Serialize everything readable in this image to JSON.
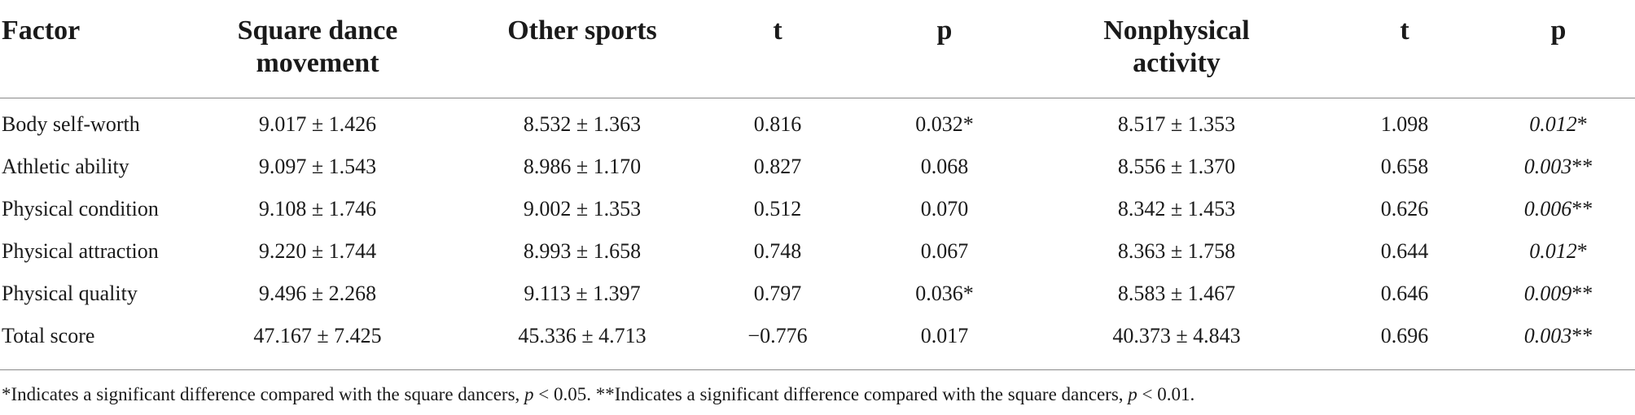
{
  "table": {
    "headers": [
      {
        "line1": "Factor",
        "line2": ""
      },
      {
        "line1": "Square dance",
        "line2": "movement"
      },
      {
        "line1": "Other sports",
        "line2": ""
      },
      {
        "line1": "t",
        "line2": ""
      },
      {
        "line1": "p",
        "line2": ""
      },
      {
        "line1": "Nonphysical",
        "line2": "activity"
      },
      {
        "line1": "t",
        "line2": ""
      },
      {
        "line1": "p",
        "line2": ""
      }
    ],
    "rows": [
      {
        "factor": "Body self-worth",
        "square": "9.017 ± 1.426",
        "other": "8.532 ± 1.363",
        "t1": "0.816",
        "p1": "0.032*",
        "nonphys": "8.517 ± 1.353",
        "t2": "1.098",
        "p2": "0.012",
        "p2_star": "*"
      },
      {
        "factor": "Athletic ability",
        "square": "9.097 ± 1.543",
        "other": "8.986 ± 1.170",
        "t1": "0.827",
        "p1": "0.068",
        "nonphys": "8.556 ± 1.370",
        "t2": "0.658",
        "p2": "0.003",
        "p2_star": "**"
      },
      {
        "factor": "Physical condition",
        "square": "9.108 ± 1.746",
        "other": "9.002 ± 1.353",
        "t1": "0.512",
        "p1": "0.070",
        "nonphys": "8.342 ± 1.453",
        "t2": "0.626",
        "p2": "0.006",
        "p2_star": "**"
      },
      {
        "factor": "Physical attraction",
        "square": "9.220 ± 1.744",
        "other": "8.993 ± 1.658",
        "t1": "0.748",
        "p1": "0.067",
        "nonphys": "8.363 ± 1.758",
        "t2": "0.644",
        "p2": "0.012",
        "p2_star": "*"
      },
      {
        "factor": "Physical quality",
        "square": "9.496 ± 2.268",
        "other": "9.113 ± 1.397",
        "t1": "0.797",
        "p1": "0.036*",
        "nonphys": "8.583 ± 1.467",
        "t2": "0.646",
        "p2": "0.009",
        "p2_star": "**"
      },
      {
        "factor": "Total score",
        "square": "47.167 ± 7.425",
        "other": "45.336 ± 4.713",
        "t1": "−0.776",
        "p1": "0.017",
        "nonphys": "40.373 ± 4.843",
        "t2": "0.696",
        "p2": "0.003",
        "p2_star": "**"
      }
    ]
  },
  "footnote": {
    "part1": "*Indicates a significant difference compared with the square dancers, ",
    "p_symbol": "p",
    "part2": " < 0.05. **Indicates a significant difference compared with the square dancers, ",
    "part3": " < 0.01."
  }
}
